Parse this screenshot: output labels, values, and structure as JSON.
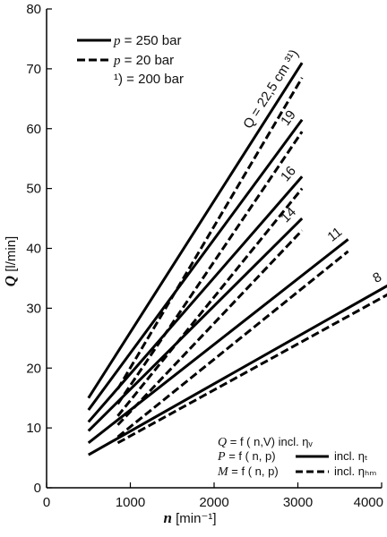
{
  "chart_data": {
    "type": "line",
    "x_axis": {
      "symbol": "n",
      "unit": "[min⁻¹]",
      "ticks": [
        0,
        1000,
        2000,
        3000,
        4000
      ],
      "range": [
        0,
        4000
      ]
    },
    "y_axis": {
      "symbol": "Q",
      "unit": "[l/min]",
      "ticks": [
        0,
        10,
        20,
        30,
        40,
        50,
        60,
        70,
        80
      ],
      "range": [
        0,
        80
      ]
    },
    "grid": false,
    "legend": {
      "placement": "top-left",
      "entries": [
        {
          "style": "solid",
          "symbol": "p",
          "text": "= 250 bar"
        },
        {
          "style": "dashed",
          "symbol": "p",
          "text": "=   20 bar"
        },
        {
          "style": "none",
          "symbol": "¹)",
          "text": "= 200 bar"
        }
      ]
    },
    "formulas": [
      {
        "symbol": "Q",
        "expr": "= f ( n,V) incl. ηᵥ",
        "line": "none"
      },
      {
        "symbol": "P",
        "expr": "= f ( n, p)",
        "line": "solid",
        "note": "incl. ηₜ"
      },
      {
        "symbol": "M",
        "expr": "= f ( n, p)",
        "line": "dashed",
        "note": "incl. ηₕₘ"
      }
    ],
    "series": [
      {
        "name": "Q = 22,5 cm ³¹)",
        "style": "solid",
        "x": [
          500,
          3050
        ],
        "y": [
          15.0,
          71.0
        ]
      },
      {
        "name": "",
        "style": "dashed",
        "x": [
          850,
          3050
        ],
        "y": [
          16.5,
          68.5
        ]
      },
      {
        "name": "19",
        "style": "solid",
        "x": [
          500,
          3050
        ],
        "y": [
          13.0,
          61.5
        ]
      },
      {
        "name": "",
        "style": "dashed",
        "x": [
          850,
          3050
        ],
        "y": [
          14.0,
          59.5
        ]
      },
      {
        "name": "16",
        "style": "solid",
        "x": [
          500,
          3050
        ],
        "y": [
          11.0,
          52.0
        ]
      },
      {
        "name": "",
        "style": "dashed",
        "x": [
          850,
          3050
        ],
        "y": [
          12.0,
          50.0
        ]
      },
      {
        "name": "14",
        "style": "solid",
        "x": [
          500,
          3050
        ],
        "y": [
          9.5,
          45.0
        ]
      },
      {
        "name": "",
        "style": "dashed",
        "x": [
          850,
          3050
        ],
        "y": [
          10.5,
          43.0
        ]
      },
      {
        "name": "11",
        "style": "solid",
        "x": [
          500,
          3600
        ],
        "y": [
          7.5,
          41.5
        ]
      },
      {
        "name": "",
        "style": "dashed",
        "x": [
          850,
          3600
        ],
        "y": [
          8.5,
          39.5
        ]
      },
      {
        "name": "8",
        "style": "solid",
        "x": [
          500,
          4100
        ],
        "y": [
          5.5,
          34.0
        ]
      },
      {
        "name": "",
        "style": "dashed",
        "x": [
          850,
          4100
        ],
        "y": [
          7.5,
          32.5
        ]
      }
    ]
  }
}
